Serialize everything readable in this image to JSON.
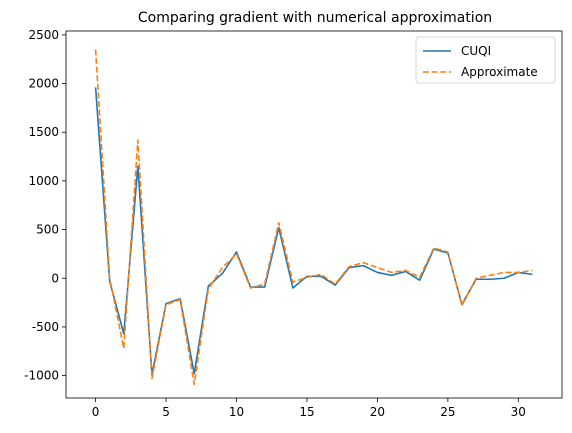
{
  "chart_data": {
    "type": "line",
    "title": "Comparing gradient with numerical approximation",
    "xlabel": "",
    "ylabel": "",
    "xlim": [
      -2.1,
      33.1
    ],
    "ylim": [
      -1230,
      2540
    ],
    "xticks": [
      0,
      5,
      10,
      15,
      20,
      25,
      30
    ],
    "yticks": [
      -1000,
      -500,
      0,
      500,
      1000,
      1500,
      2000,
      2500
    ],
    "grid": false,
    "legend": "top-right",
    "x": [
      0,
      1,
      2,
      3,
      4,
      5,
      6,
      7,
      8,
      9,
      10,
      11,
      12,
      13,
      14,
      15,
      16,
      17,
      18,
      19,
      20,
      21,
      22,
      23,
      24,
      25,
      26,
      27,
      28,
      29,
      30,
      31
    ],
    "series": [
      {
        "name": "CUQI",
        "color": "#1f77b4",
        "style": "solid",
        "values": [
          1960,
          -30,
          -570,
          1150,
          -990,
          -260,
          -210,
          -980,
          -80,
          50,
          270,
          -90,
          -90,
          520,
          -100,
          20,
          20,
          -70,
          110,
          130,
          60,
          30,
          70,
          -20,
          300,
          260,
          -270,
          -10,
          -10,
          0,
          60,
          40
        ]
      },
      {
        "name": "Approximate",
        "color": "#ff7f0e",
        "style": "dashed",
        "values": [
          2350,
          0,
          -720,
          1420,
          -1030,
          -270,
          -220,
          -1090,
          -110,
          110,
          250,
          -100,
          -60,
          570,
          -40,
          10,
          40,
          -60,
          120,
          160,
          110,
          60,
          80,
          10,
          310,
          270,
          -280,
          0,
          30,
          60,
          60,
          80
        ]
      }
    ]
  }
}
